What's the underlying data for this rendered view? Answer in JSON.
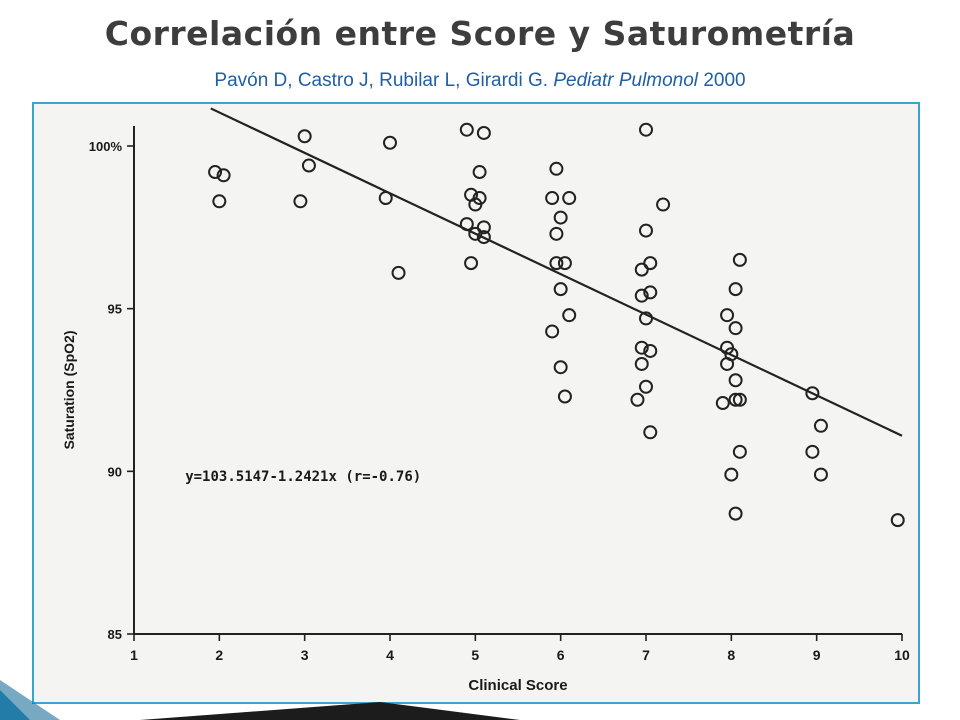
{
  "slide": {
    "title": "Correlación entre Score y Saturometría",
    "citation_authors": "Pavón D, Castro J, Rubilar L, Girardi G.",
    "citation_journal": "Pediatr Pulmonol",
    "citation_year": "2000"
  },
  "colors": {
    "title": "#3d3d3d",
    "citation": "#1f5fa8",
    "frame": "#3aa6cf",
    "deco_blue": "#2a8fbf",
    "deco_dark": "#1c1c1c"
  },
  "chart_data": {
    "type": "scatter",
    "xlabel": "Clinical Score",
    "ylabel": "Saturation (SpO2)",
    "xlim": [
      1,
      10
    ],
    "ylim": [
      85,
      100
    ],
    "x_ticks": [
      1,
      2,
      3,
      4,
      5,
      6,
      7,
      8,
      9,
      10
    ],
    "y_ticks": [
      {
        "value": 100,
        "label": "100%"
      },
      {
        "value": 95,
        "label": "95"
      },
      {
        "value": 90,
        "label": "90"
      },
      {
        "value": 85,
        "label": "85"
      }
    ],
    "annotation": "y=103.5147-1.2421x (r=-0.76)",
    "regression": {
      "intercept": 103.5147,
      "slope": -1.2421
    },
    "points": [
      {
        "x": 1.95,
        "y": 99.2
      },
      {
        "x": 2.05,
        "y": 99.1
      },
      {
        "x": 2.0,
        "y": 98.3
      },
      {
        "x": 3.0,
        "y": 100.3
      },
      {
        "x": 3.05,
        "y": 99.4
      },
      {
        "x": 2.95,
        "y": 98.3
      },
      {
        "x": 4.0,
        "y": 100.1
      },
      {
        "x": 3.95,
        "y": 98.4
      },
      {
        "x": 4.1,
        "y": 96.1
      },
      {
        "x": 4.9,
        "y": 100.5
      },
      {
        "x": 5.1,
        "y": 100.4
      },
      {
        "x": 5.05,
        "y": 99.2
      },
      {
        "x": 4.95,
        "y": 98.5
      },
      {
        "x": 5.05,
        "y": 98.4
      },
      {
        "x": 5.0,
        "y": 98.2
      },
      {
        "x": 4.9,
        "y": 97.6
      },
      {
        "x": 5.1,
        "y": 97.5
      },
      {
        "x": 5.0,
        "y": 97.3
      },
      {
        "x": 5.1,
        "y": 97.2
      },
      {
        "x": 4.95,
        "y": 96.4
      },
      {
        "x": 5.95,
        "y": 99.3
      },
      {
        "x": 5.9,
        "y": 98.4
      },
      {
        "x": 6.1,
        "y": 98.4
      },
      {
        "x": 6.0,
        "y": 97.8
      },
      {
        "x": 5.95,
        "y": 97.3
      },
      {
        "x": 6.05,
        "y": 96.4
      },
      {
        "x": 5.95,
        "y": 96.4
      },
      {
        "x": 6.0,
        "y": 95.6
      },
      {
        "x": 6.1,
        "y": 94.8
      },
      {
        "x": 5.9,
        "y": 94.3
      },
      {
        "x": 6.0,
        "y": 93.2
      },
      {
        "x": 6.05,
        "y": 92.3
      },
      {
        "x": 7.0,
        "y": 100.5
      },
      {
        "x": 7.2,
        "y": 98.2
      },
      {
        "x": 7.0,
        "y": 97.4
      },
      {
        "x": 7.05,
        "y": 96.4
      },
      {
        "x": 6.95,
        "y": 96.2
      },
      {
        "x": 7.05,
        "y": 95.5
      },
      {
        "x": 6.95,
        "y": 95.4
      },
      {
        "x": 7.0,
        "y": 94.7
      },
      {
        "x": 6.95,
        "y": 93.8
      },
      {
        "x": 7.05,
        "y": 93.7
      },
      {
        "x": 6.95,
        "y": 93.3
      },
      {
        "x": 7.0,
        "y": 92.6
      },
      {
        "x": 6.9,
        "y": 92.2
      },
      {
        "x": 7.05,
        "y": 91.2
      },
      {
        "x": 8.1,
        "y": 96.5
      },
      {
        "x": 8.05,
        "y": 95.6
      },
      {
        "x": 7.95,
        "y": 94.8
      },
      {
        "x": 8.05,
        "y": 94.4
      },
      {
        "x": 7.95,
        "y": 93.8
      },
      {
        "x": 8.0,
        "y": 93.6
      },
      {
        "x": 7.95,
        "y": 93.3
      },
      {
        "x": 8.05,
        "y": 92.8
      },
      {
        "x": 8.1,
        "y": 92.2
      },
      {
        "x": 7.9,
        "y": 92.1
      },
      {
        "x": 8.05,
        "y": 92.2
      },
      {
        "x": 8.1,
        "y": 90.6
      },
      {
        "x": 8.0,
        "y": 89.9
      },
      {
        "x": 8.05,
        "y": 88.7
      },
      {
        "x": 8.95,
        "y": 92.4
      },
      {
        "x": 9.05,
        "y": 91.4
      },
      {
        "x": 8.95,
        "y": 90.6
      },
      {
        "x": 9.05,
        "y": 89.9
      },
      {
        "x": 9.95,
        "y": 88.5
      }
    ]
  }
}
